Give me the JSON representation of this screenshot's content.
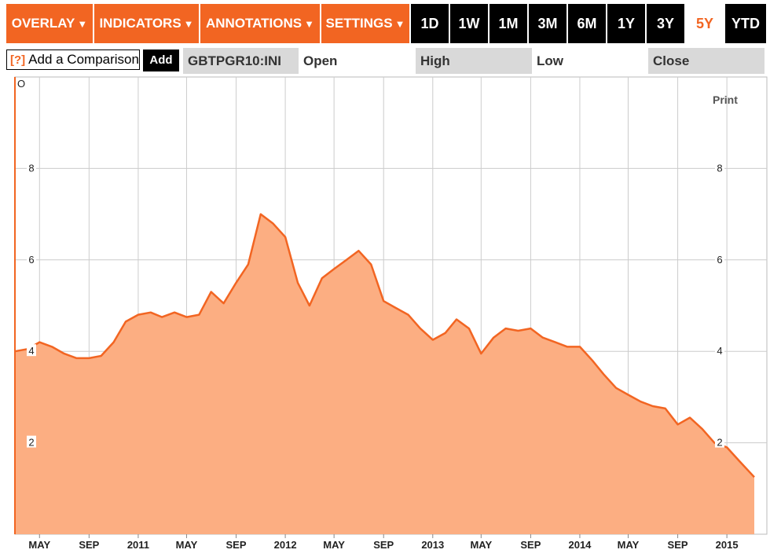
{
  "toolbar": {
    "menus": [
      {
        "label": "OVERLAY",
        "caret": "▼"
      },
      {
        "label": "INDICATORS",
        "caret": "▼"
      },
      {
        "label": "ANNOTATIONS",
        "caret": "▼"
      },
      {
        "label": "SETTINGS",
        "caret": "▼"
      }
    ],
    "ranges": [
      "1D",
      "1W",
      "1M",
      "3M",
      "6M",
      "1Y",
      "3Y",
      "5Y",
      "YTD"
    ],
    "active_range": "5Y"
  },
  "subbar": {
    "help": "[?]",
    "compare_placeholder": "Add a Comparison",
    "add_label": "Add",
    "ticker": "GBTPGR10:INI",
    "open_label": "Open",
    "high_label": "High",
    "low_label": "Low",
    "close_label": "Close"
  },
  "chart": {
    "print_label": "Print",
    "origin_label": "O"
  },
  "colors": {
    "accent": "#f26522",
    "line": "#f26522",
    "fill": "#fcae82"
  },
  "chart_data": {
    "type": "area",
    "title": "",
    "xlabel": "",
    "ylabel": "",
    "ylim": [
      0,
      10
    ],
    "y_ticks": [
      2,
      4,
      6,
      8
    ],
    "x_tick_labels": [
      "MAY",
      "SEP",
      "2011",
      "MAY",
      "SEP",
      "2012",
      "MAY",
      "SEP",
      "2013",
      "MAY",
      "SEP",
      "2014",
      "MAY",
      "SEP",
      "2015"
    ],
    "x_tick_dates": [
      "2010-05-01",
      "2010-09-01",
      "2011-01-01",
      "2011-05-01",
      "2011-09-01",
      "2012-01-01",
      "2012-05-01",
      "2012-09-01",
      "2013-01-01",
      "2013-05-01",
      "2013-09-01",
      "2014-01-01",
      "2014-05-01",
      "2014-09-01",
      "2015-01-01"
    ],
    "grid": true,
    "x_range": [
      "2010-03-01",
      "2015-03-10"
    ],
    "series": [
      {
        "points": [
          [
            "2010-03-01",
            4.0
          ],
          [
            "2010-04-01",
            4.05
          ],
          [
            "2010-05-01",
            4.2
          ],
          [
            "2010-06-01",
            4.1
          ],
          [
            "2010-07-01",
            3.95
          ],
          [
            "2010-08-01",
            3.85
          ],
          [
            "2010-09-01",
            3.85
          ],
          [
            "2010-10-01",
            3.9
          ],
          [
            "2010-11-01",
            4.2
          ],
          [
            "2010-12-01",
            4.65
          ],
          [
            "2011-01-01",
            4.8
          ],
          [
            "2011-02-01",
            4.85
          ],
          [
            "2011-03-01",
            4.75
          ],
          [
            "2011-04-01",
            4.85
          ],
          [
            "2011-05-01",
            4.75
          ],
          [
            "2011-06-01",
            4.8
          ],
          [
            "2011-07-01",
            5.3
          ],
          [
            "2011-08-01",
            5.05
          ],
          [
            "2011-09-01",
            5.5
          ],
          [
            "2011-10-01",
            5.9
          ],
          [
            "2011-11-01",
            7.0
          ],
          [
            "2011-12-01",
            6.8
          ],
          [
            "2012-01-01",
            6.5
          ],
          [
            "2012-02-01",
            5.5
          ],
          [
            "2012-03-01",
            5.0
          ],
          [
            "2012-04-01",
            5.6
          ],
          [
            "2012-05-01",
            5.8
          ],
          [
            "2012-06-01",
            6.0
          ],
          [
            "2012-07-01",
            6.2
          ],
          [
            "2012-08-01",
            5.9
          ],
          [
            "2012-09-01",
            5.1
          ],
          [
            "2012-10-01",
            4.95
          ],
          [
            "2012-11-01",
            4.8
          ],
          [
            "2012-12-01",
            4.5
          ],
          [
            "2013-01-01",
            4.25
          ],
          [
            "2013-02-01",
            4.4
          ],
          [
            "2013-03-01",
            4.7
          ],
          [
            "2013-04-01",
            4.5
          ],
          [
            "2013-05-01",
            3.95
          ],
          [
            "2013-06-01",
            4.3
          ],
          [
            "2013-07-01",
            4.5
          ],
          [
            "2013-08-01",
            4.45
          ],
          [
            "2013-09-01",
            4.5
          ],
          [
            "2013-10-01",
            4.3
          ],
          [
            "2013-11-01",
            4.2
          ],
          [
            "2013-12-01",
            4.1
          ],
          [
            "2014-01-01",
            4.1
          ],
          [
            "2014-02-01",
            3.8
          ],
          [
            "2014-03-01",
            3.5
          ],
          [
            "2014-04-01",
            3.2
          ],
          [
            "2014-05-01",
            3.05
          ],
          [
            "2014-06-01",
            2.9
          ],
          [
            "2014-07-01",
            2.8
          ],
          [
            "2014-08-01",
            2.75
          ],
          [
            "2014-09-01",
            2.4
          ],
          [
            "2014-10-01",
            2.55
          ],
          [
            "2014-11-01",
            2.3
          ],
          [
            "2014-12-01",
            2.0
          ],
          [
            "2015-01-01",
            1.9
          ],
          [
            "2015-02-01",
            1.6
          ],
          [
            "2015-03-10",
            1.25
          ]
        ]
      }
    ]
  }
}
